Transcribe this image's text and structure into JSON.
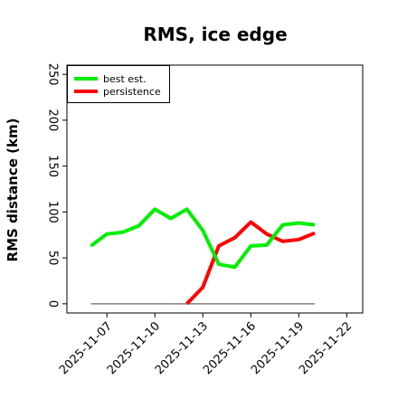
{
  "chart_data": {
    "type": "line",
    "title": "RMS, ice edge",
    "xlabel": "",
    "ylabel": "RMS distance (km)",
    "ylim": [
      -10,
      260
    ],
    "xlim": [
      "2025-11-04T12:00",
      "2025-11-23T00:00"
    ],
    "yticks": [
      0,
      50,
      100,
      150,
      200,
      250
    ],
    "xticks": [
      "2025-11-07",
      "2025-11-10",
      "2025-11-13",
      "2025-11-16",
      "2025-11-19",
      "2025-11-22"
    ],
    "grid": false,
    "legend_position": "top-left",
    "series": [
      {
        "name": "best est.",
        "color": "#00ee00",
        "x": [
          "2025-11-06",
          "2025-11-07",
          "2025-11-08",
          "2025-11-09",
          "2025-11-10",
          "2025-11-11",
          "2025-11-12",
          "2025-11-13",
          "2025-11-14",
          "2025-11-15",
          "2025-11-16",
          "2025-11-17",
          "2025-11-18",
          "2025-11-19",
          "2025-11-20"
        ],
        "values": [
          63,
          76,
          78,
          85,
          103,
          93,
          103,
          80,
          43,
          40,
          63,
          64,
          86,
          88,
          86
        ]
      },
      {
        "name": "persistence",
        "color": "#ff0000",
        "x": [
          "2025-11-12",
          "2025-11-13",
          "2025-11-14",
          "2025-11-15",
          "2025-11-16",
          "2025-11-17",
          "2025-11-18",
          "2025-11-19",
          "2025-11-20"
        ],
        "values": [
          0,
          18,
          63,
          72,
          89,
          76,
          68,
          70,
          77
        ]
      },
      {
        "name": "",
        "color": "#808080",
        "x": [
          "2025-11-06",
          "2025-11-20"
        ],
        "values": [
          0,
          0
        ]
      }
    ]
  }
}
